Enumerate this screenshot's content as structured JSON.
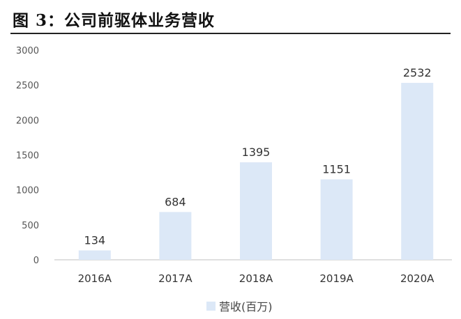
{
  "figure": {
    "title": "图 3：公司前驱体业务营收"
  },
  "colors": {
    "bar": "#dce8f7",
    "axis": "#bfbfbf",
    "label": "#333333",
    "tick": "#555555"
  },
  "chart_data": {
    "type": "bar",
    "title": "",
    "xlabel": "",
    "ylabel": "",
    "categories": [
      "2016A",
      "2017A",
      "2018A",
      "2019A",
      "2020A"
    ],
    "series": [
      {
        "name": "营收(百万)",
        "values": [
          134,
          684,
          1395,
          1151,
          2532
        ]
      }
    ],
    "data_labels": [
      "134",
      "684",
      "1395",
      "1151",
      "2532"
    ],
    "ylim": [
      0,
      3000
    ],
    "yticks": [
      0,
      500,
      1000,
      1500,
      2000,
      2500,
      3000
    ],
    "ytick_labels": [
      "0",
      "500",
      "1000",
      "1500",
      "2000",
      "2500",
      "3000"
    ],
    "grid": false,
    "legend_position": "bottom-center"
  }
}
